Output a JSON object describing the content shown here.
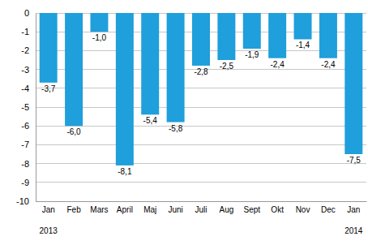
{
  "chart_data": {
    "type": "bar",
    "categories": [
      "Jan",
      "Feb",
      "Mars",
      "April",
      "Maj",
      "Juni",
      "Juli",
      "Aug",
      "Sept",
      "Okt",
      "Nov",
      "Dec",
      "Jan"
    ],
    "values": [
      -3.7,
      -6.0,
      -1.0,
      -8.1,
      -5.4,
      -5.8,
      -2.8,
      -2.5,
      -1.9,
      -2.4,
      -1.4,
      -2.4,
      -7.5
    ],
    "value_labels": [
      "-3,7",
      "-6,0",
      "-1,0",
      "-8,1",
      "-5,4",
      "-5,8",
      "-2,8",
      "-2,5",
      "-1,9",
      "-2,4",
      "-1,4",
      "-2,4",
      "-7,5"
    ],
    "annotations": [
      "2013",
      "2014"
    ],
    "color": "#1f9fdb",
    "ylim": [
      -10,
      0
    ],
    "yticks": [
      0,
      -1,
      -2,
      -3,
      -4,
      -5,
      -6,
      -7,
      -8,
      -9,
      -10
    ],
    "grid": true,
    "data_labels": true
  }
}
